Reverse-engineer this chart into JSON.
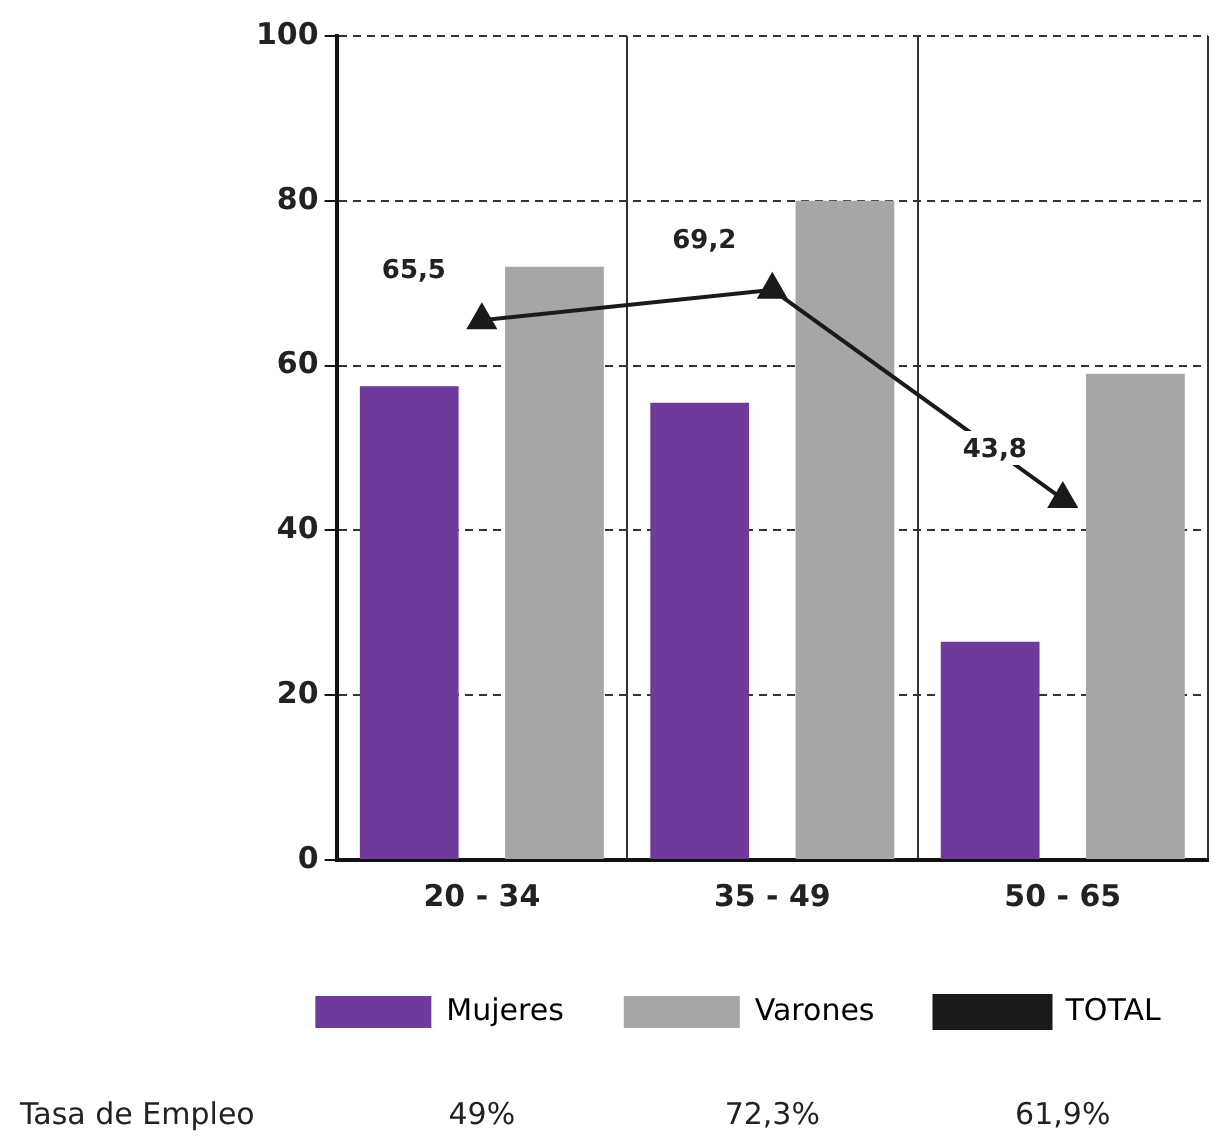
{
  "chart_data": {
    "type": "bar",
    "categories": [
      "20 - 34",
      "35 - 49",
      "50 - 65"
    ],
    "series": [
      {
        "name": "Mujeres",
        "color": "#6f3a9c",
        "values": [
          57.5,
          55.5,
          26.5
        ]
      },
      {
        "name": "Varones",
        "color": "#a6a6a8",
        "values": [
          72,
          80,
          59
        ]
      },
      {
        "name": "TOTAL",
        "type": "line",
        "color": "#1a1a1a",
        "marker": "triangle",
        "values": [
          65.5,
          69.2,
          43.8
        ],
        "value_labels": [
          "65,5",
          "69,2",
          "43,8"
        ]
      }
    ],
    "ylim": [
      0,
      100
    ],
    "yticks": [
      0,
      20,
      40,
      60,
      80,
      100
    ],
    "grid": true,
    "legend": "bottom",
    "annotations": [
      "Tasa de Empleo",
      "49%",
      "72,3%",
      "61,9%"
    ]
  }
}
